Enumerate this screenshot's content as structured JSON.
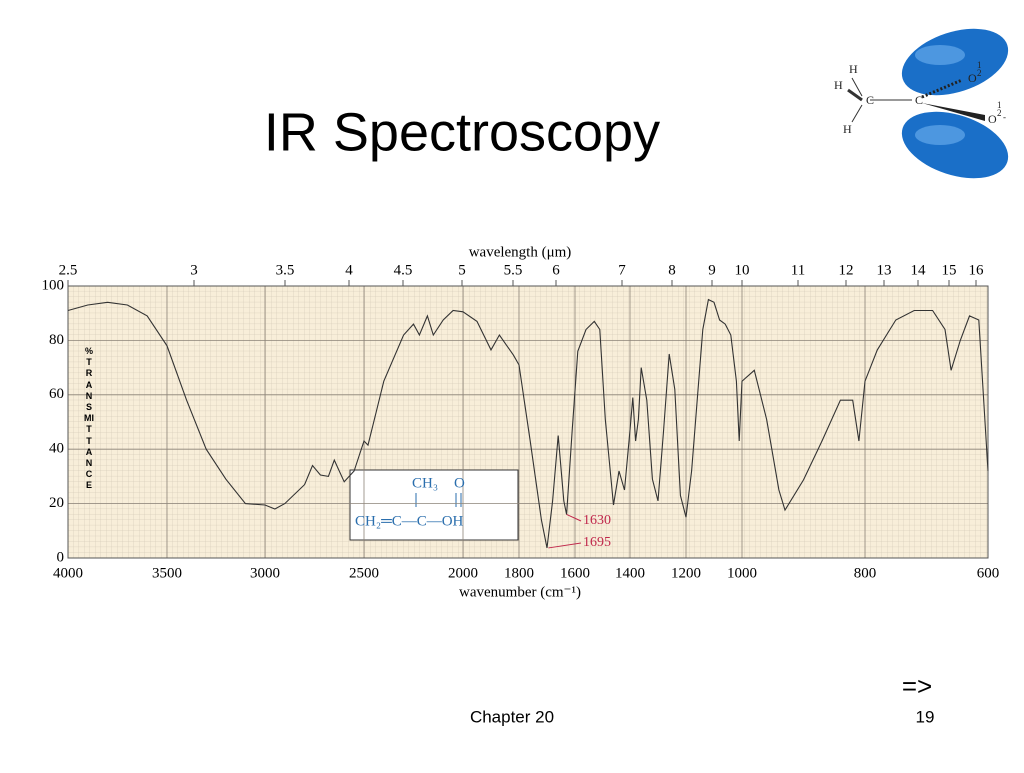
{
  "slide": {
    "title": "IR Spectroscopy",
    "footer": "Chapter 20",
    "page": "19",
    "next": "=>"
  },
  "molecule": {
    "labels": [
      "H",
      "H",
      "H",
      "C",
      "C",
      "O",
      "O",
      "1",
      "2",
      "1",
      "2",
      "-"
    ]
  },
  "chart_data": {
    "type": "line",
    "x_label": "wavenumber (cm⁻¹)",
    "x2_label": "wavelength (μm)",
    "y_label": "%TRANSMITTANCE",
    "color": "#333333",
    "grid": true,
    "x": [
      4000,
      3900,
      3800,
      3700,
      3600,
      3500,
      3400,
      3300,
      3200,
      3100,
      3000,
      2950,
      2900,
      2800,
      2760,
      2720,
      2680,
      2650,
      2600,
      2550,
      2500,
      2480,
      2400,
      2300,
      2250,
      2220,
      2180,
      2150,
      2100,
      2050,
      2000,
      1950,
      1900,
      1870,
      1820,
      1800,
      1760,
      1720,
      1700,
      1680,
      1660,
      1640,
      1630,
      1610,
      1590,
      1560,
      1530,
      1510,
      1490,
      1460,
      1440,
      1420,
      1400,
      1390,
      1380,
      1370,
      1360,
      1340,
      1320,
      1300,
      1280,
      1260,
      1240,
      1220,
      1200,
      1180,
      1160,
      1140,
      1120,
      1100,
      1080,
      1060,
      1040,
      1020,
      1010,
      1000,
      980,
      960,
      940,
      930,
      900,
      870,
      840,
      820,
      810,
      800,
      780,
      750,
      720,
      690,
      670,
      660,
      645,
      630,
      615,
      600
    ],
    "values": [
      91,
      93,
      94,
      93,
      89,
      78,
      58,
      40,
      29,
      20,
      19.5,
      18,
      20,
      27,
      34,
      30.5,
      30,
      36,
      28,
      32,
      43,
      41.5,
      65,
      82,
      86,
      82,
      89,
      82,
      87.5,
      91,
      90.5,
      87,
      76.5,
      82,
      74.6,
      71,
      43,
      14,
      3.7,
      21,
      45,
      21,
      16,
      47,
      76,
      84,
      87,
      84,
      51,
      19.5,
      32,
      25,
      47,
      59,
      43,
      51,
      70,
      58,
      29,
      21,
      47,
      75,
      62,
      23,
      15,
      32,
      58,
      84,
      95,
      94,
      87.5,
      86,
      82,
      65,
      43,
      65,
      69,
      51,
      25,
      17.6,
      28.7,
      43,
      58,
      58,
      43,
      65,
      76.5,
      87.5,
      91,
      91,
      84,
      69,
      80,
      89,
      87.5,
      32
    ],
    "xlim": [
      4000,
      600
    ],
    "xticks": [
      4000,
      3500,
      3000,
      2500,
      2000,
      1800,
      1600,
      1400,
      1200,
      1000,
      800,
      600
    ],
    "x2ticks": [
      2.5,
      3,
      3.5,
      4,
      4.5,
      5,
      5.5,
      6,
      7,
      8,
      9,
      10,
      11,
      12,
      13,
      14,
      15,
      16
    ],
    "ylim": [
      0,
      100
    ],
    "yticks": [
      0,
      20,
      40,
      60,
      80,
      100
    ],
    "inset": [
      "CH₃",
      "O",
      "CH₂═C—C—OH"
    ],
    "annotations": [
      {
        "text": "1630",
        "x": 1630,
        "y": 16
      },
      {
        "text": "1695",
        "x": 1695,
        "y": 3.7
      }
    ],
    "annotation_color": "#c0284c",
    "inset_color": "#2a6ead"
  }
}
